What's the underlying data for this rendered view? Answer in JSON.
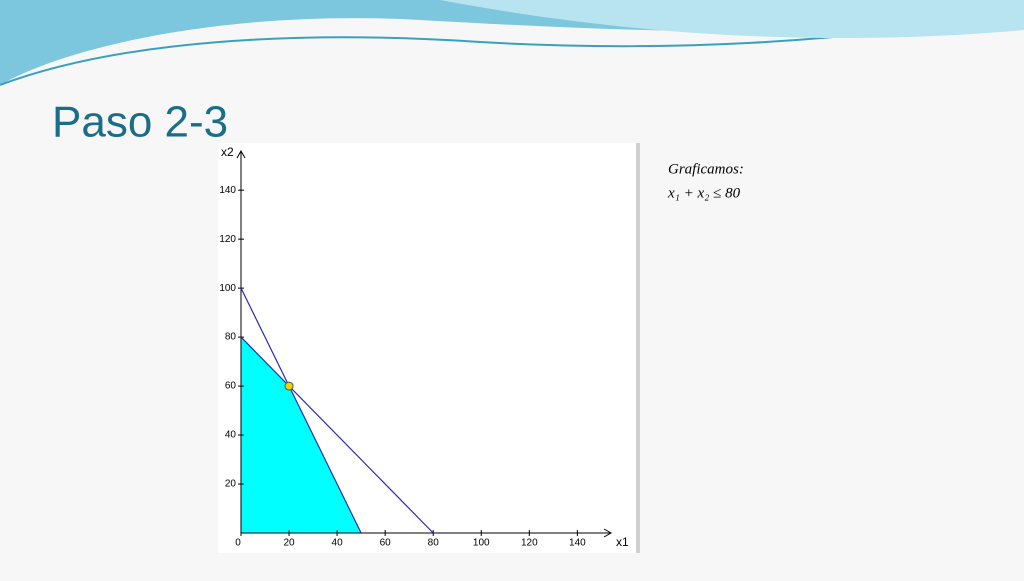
{
  "slide_title": "Paso 2-3",
  "annotation": {
    "heading": "Graficamos:",
    "inequality": "x₁ + x₂ ≤ 80"
  },
  "chart_data": {
    "type": "line",
    "x_label": "x1",
    "y_label": "x2",
    "xlim": [
      0,
      154
    ],
    "ylim": [
      0,
      156
    ],
    "xticks": [
      0,
      20,
      40,
      60,
      80,
      100,
      120,
      140
    ],
    "yticks": [
      20,
      40,
      60,
      80,
      100,
      120,
      140
    ],
    "area": {
      "color": "#00ffff",
      "x": [
        0,
        0,
        20,
        50
      ],
      "y": [
        0,
        80,
        60,
        0
      ]
    },
    "lines": [
      {
        "color": "#2a2ab4",
        "x": [
          0,
          50
        ],
        "y": [
          100,
          0
        ]
      },
      {
        "color": "#2a2ab4",
        "x": [
          0,
          80
        ],
        "y": [
          80,
          0
        ]
      }
    ],
    "point": {
      "color": "#f2d200",
      "x": 20,
      "y": 60
    }
  }
}
